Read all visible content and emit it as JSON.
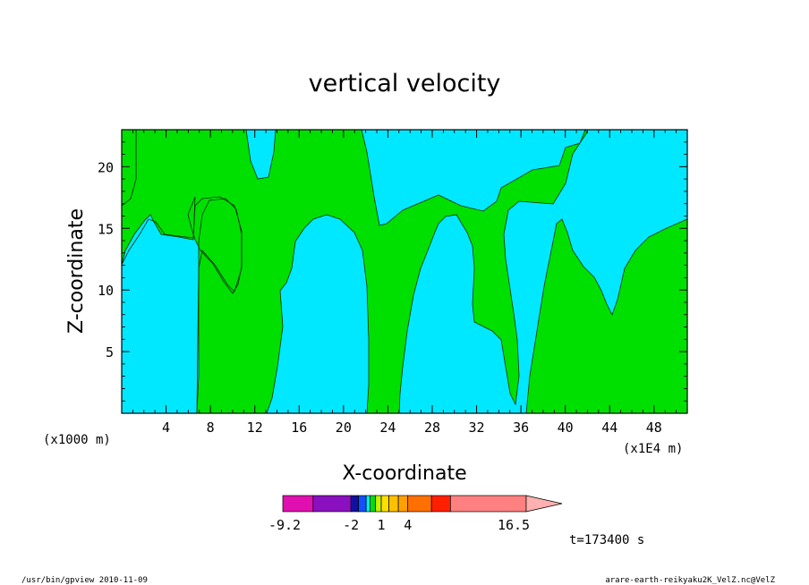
{
  "chart_data": {
    "type": "heatmap",
    "title": "vertical velocity",
    "xlabel": "X-coordinate",
    "ylabel": "Z-coordinate",
    "x_scale_note": "(x1E4 m)",
    "y_scale_note": "(x1000 m)",
    "x_ticks": [
      "4",
      "8",
      "12",
      "16",
      "20",
      "24",
      "28",
      "32",
      "36",
      "40",
      "44",
      "48"
    ],
    "y_ticks": [
      "5",
      "10",
      "15",
      "20"
    ],
    "xlim": [
      0,
      51
    ],
    "ylim": [
      0,
      23
    ],
    "time_label": "t=173400 s",
    "colorbar": {
      "min": -9.2,
      "max": 16.5,
      "labels": [
        "-9.2",
        "-2",
        "1",
        "4",
        "16.5"
      ],
      "colors": [
        "#e010b0",
        "#8a10c0",
        "#1010a0",
        "#1050ff",
        "#00e8ff",
        "#00e000",
        "#c8f000",
        "#ffe000",
        "#ffc000",
        "#ffa000",
        "#ff7000",
        "#ff2000",
        "#ff8080",
        "#ffb0b0"
      ]
    },
    "regions": {
      "background_color": "#00e8ff",
      "updraft_color": "#00e000"
    }
  },
  "footer": {
    "left": "/usr/bin/gpview   2010-11-09",
    "right": "arare-earth-reikyaku2K_VelZ.nc@VelZ"
  }
}
